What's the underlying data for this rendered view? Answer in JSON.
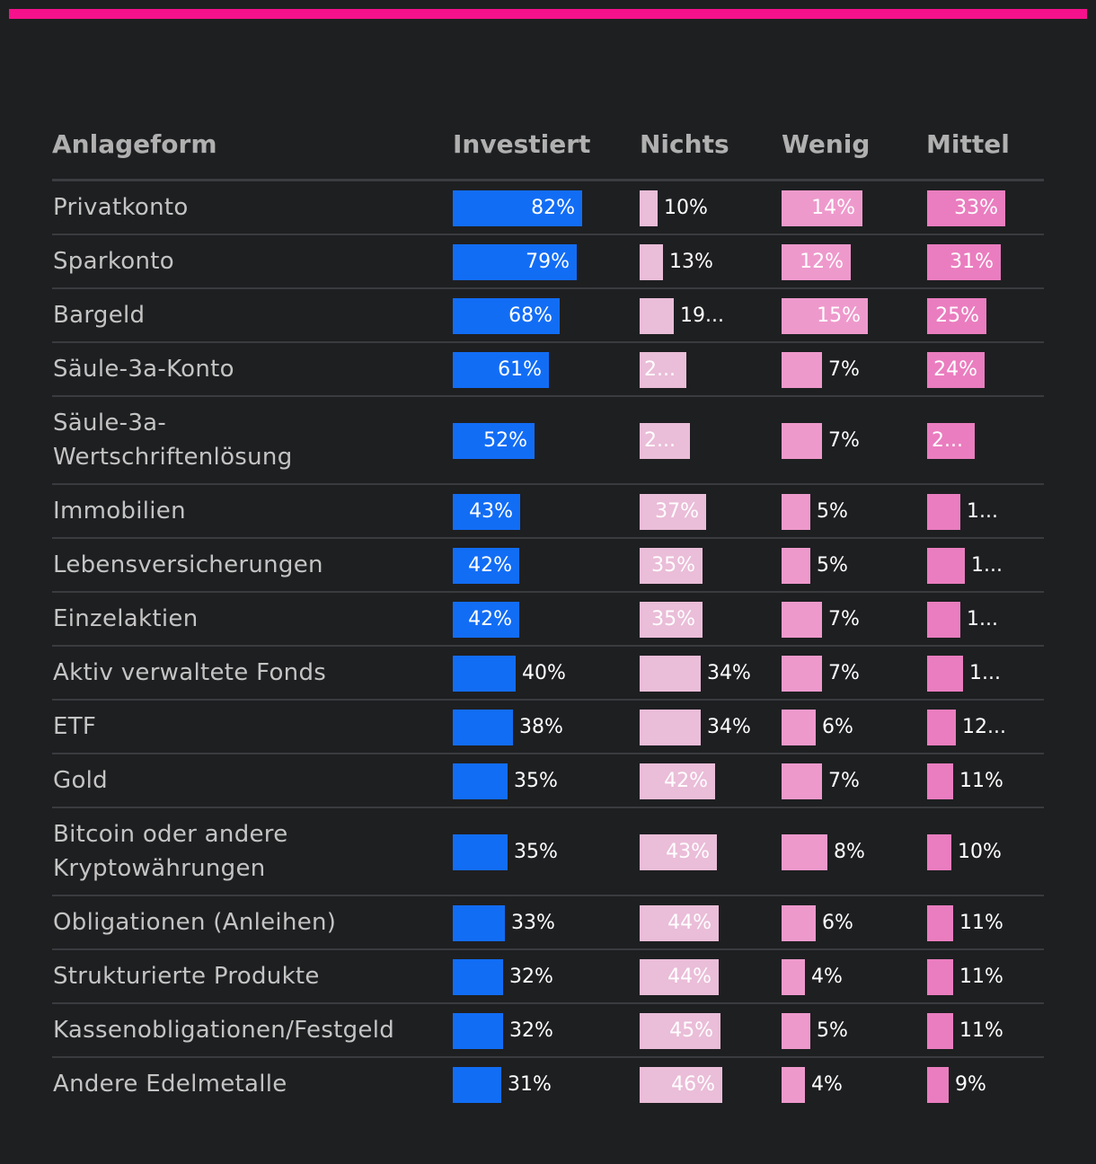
{
  "colors": {
    "accent": "#f5118b",
    "background": "#1e1f21",
    "investiert": "#126df5",
    "nichts": "#eabdd8",
    "wenig": "#ee99cc",
    "mittel": "#ea7dbf"
  },
  "chart_data": {
    "type": "table",
    "columns": [
      "Anlageform",
      "Investiert",
      "Nichts",
      "Wenig",
      "Mittel"
    ],
    "rows": [
      {
        "label": "Privatkonto",
        "investiert": 82,
        "nichts": 10,
        "wenig": 14,
        "mittel": 33,
        "labels": {
          "investiert": "82%",
          "nichts": "10%",
          "wenig": "14%",
          "mittel": "33%"
        }
      },
      {
        "label": "Sparkonto",
        "investiert": 79,
        "nichts": 13,
        "wenig": 12,
        "mittel": 31,
        "labels": {
          "investiert": "79%",
          "nichts": "13%",
          "wenig": "12%",
          "mittel": "31%"
        }
      },
      {
        "label": "Bargeld",
        "investiert": 68,
        "nichts": 19,
        "wenig": 15,
        "mittel": 25,
        "labels": {
          "investiert": "68%",
          "nichts": "19...",
          "wenig": "15%",
          "mittel": "25%"
        }
      },
      {
        "label": "Säule-3a-Konto",
        "investiert": 61,
        "nichts": 26,
        "wenig": 7,
        "mittel": 24,
        "labels": {
          "investiert": "61%",
          "nichts": "2...",
          "wenig": "7%",
          "mittel": "24%"
        }
      },
      {
        "label": "Säule-3a-Wertschriftenlösung",
        "display": "Säule-3a-\nWertschriftenlösung",
        "investiert": 52,
        "nichts": 28,
        "wenig": 7,
        "mittel": 20,
        "labels": {
          "investiert": "52%",
          "nichts": "2...",
          "wenig": "7%",
          "mittel": "2..."
        }
      },
      {
        "label": "Immobilien",
        "investiert": 43,
        "nichts": 37,
        "wenig": 5,
        "mittel": 14,
        "labels": {
          "investiert": "43%",
          "nichts": "37%",
          "wenig": "5%",
          "mittel": "1..."
        }
      },
      {
        "label": "Lebensversicherungen",
        "investiert": 42,
        "nichts": 35,
        "wenig": 5,
        "mittel": 16,
        "labels": {
          "investiert": "42%",
          "nichts": "35%",
          "wenig": "5%",
          "mittel": "1..."
        }
      },
      {
        "label": "Einzelaktien",
        "investiert": 42,
        "nichts": 35,
        "wenig": 7,
        "mittel": 14,
        "labels": {
          "investiert": "42%",
          "nichts": "35%",
          "wenig": "7%",
          "mittel": "1..."
        }
      },
      {
        "label": "Aktiv verwaltete Fonds",
        "investiert": 40,
        "nichts": 34,
        "wenig": 7,
        "mittel": 15,
        "labels": {
          "investiert": "40%",
          "nichts": "34%",
          "wenig": "7%",
          "mittel": "1..."
        }
      },
      {
        "label": "ETF",
        "investiert": 38,
        "nichts": 34,
        "wenig": 6,
        "mittel": 12,
        "labels": {
          "investiert": "38%",
          "nichts": "34%",
          "wenig": "6%",
          "mittel": "12..."
        }
      },
      {
        "label": "Gold",
        "investiert": 35,
        "nichts": 42,
        "wenig": 7,
        "mittel": 11,
        "labels": {
          "investiert": "35%",
          "nichts": "42%",
          "wenig": "7%",
          "mittel": "11%"
        }
      },
      {
        "label": "Bitcoin oder andere Kryptowährungen",
        "display": "Bitcoin oder andere\nKryptowährungen",
        "investiert": 35,
        "nichts": 43,
        "wenig": 8,
        "mittel": 10,
        "labels": {
          "investiert": "35%",
          "nichts": "43%",
          "wenig": "8%",
          "mittel": "10%"
        }
      },
      {
        "label": "Obligationen (Anleihen)",
        "investiert": 33,
        "nichts": 44,
        "wenig": 6,
        "mittel": 11,
        "labels": {
          "investiert": "33%",
          "nichts": "44%",
          "wenig": "6%",
          "mittel": "11%"
        }
      },
      {
        "label": "Strukturierte Produkte",
        "investiert": 32,
        "nichts": 44,
        "wenig": 4,
        "mittel": 11,
        "labels": {
          "investiert": "32%",
          "nichts": "44%",
          "wenig": "4%",
          "mittel": "11%"
        }
      },
      {
        "label": "Kassenobligationen/Festgeld",
        "investiert": 32,
        "nichts": 45,
        "wenig": 5,
        "mittel": 11,
        "labels": {
          "investiert": "32%",
          "nichts": "45%",
          "wenig": "5%",
          "mittel": "11%"
        }
      },
      {
        "label": "Andere Edelmetalle",
        "investiert": 31,
        "nichts": 46,
        "wenig": 4,
        "mittel": 9,
        "labels": {
          "investiert": "31%",
          "nichts": "46%",
          "wenig": "4%",
          "mittel": "9%"
        }
      }
    ]
  }
}
